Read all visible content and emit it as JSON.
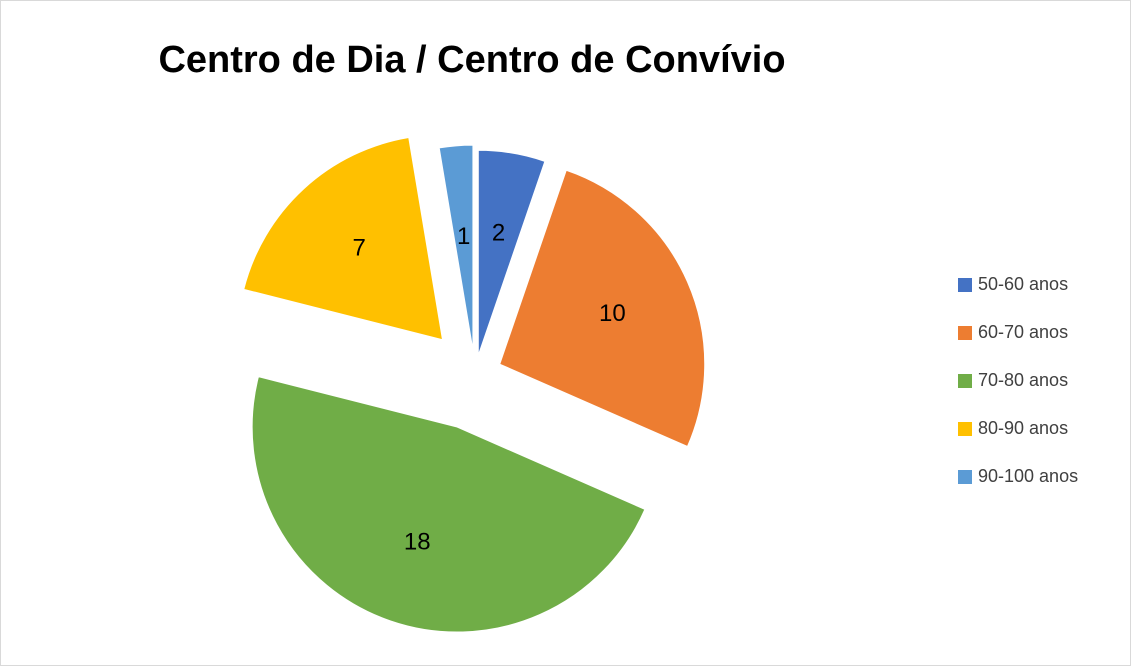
{
  "chart_data": {
    "type": "pie",
    "title": "Centro de Dia / Centro de Convívio",
    "categories": [
      "50-60 anos",
      "60-70 anos",
      "70-80 anos",
      "80-90 anos",
      "90-100 anos"
    ],
    "values": [
      2,
      10,
      18,
      7,
      1
    ],
    "colors": [
      "#4472c4",
      "#ed7d31",
      "#70ad47",
      "#ffc000",
      "#5b9bd5"
    ],
    "legend": "right"
  }
}
